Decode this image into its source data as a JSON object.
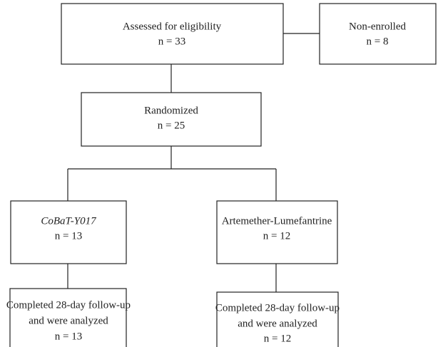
{
  "nodes": [
    {
      "lines": [
        "Assessed for eligibility",
        "n = 33"
      ]
    },
    {
      "lines": [
        "Non-enrolled",
        "n = 8"
      ]
    },
    {
      "lines": [
        "Randomized",
        "n = 25"
      ]
    },
    {
      "lines": [
        "CoBaT-Y017",
        "n = 13"
      ]
    },
    {
      "lines": [
        "Artemether-Lumefantrine",
        "n = 12"
      ]
    },
    {
      "lines": [
        "Completed 28-day follow-up",
        "and were analyzed",
        "n = 13"
      ]
    },
    {
      "lines": [
        "Completed 28-day follow-up",
        "and were analyzed",
        "n = 12"
      ]
    }
  ]
}
